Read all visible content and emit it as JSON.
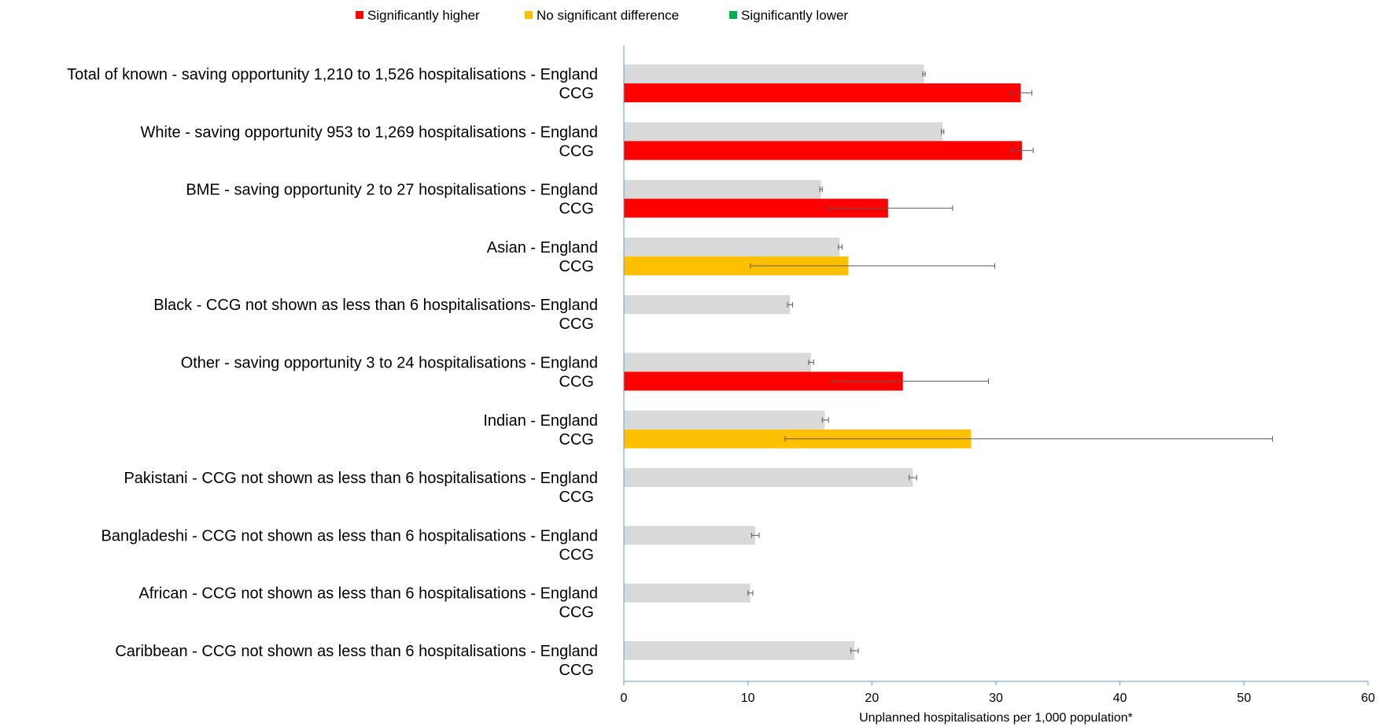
{
  "legend": [
    {
      "label": "Significantly higher",
      "color": "#ff0000"
    },
    {
      "label": "No significant difference",
      "color": "#ffc000"
    },
    {
      "label": "Significantly lower",
      "color": "#00b050"
    }
  ],
  "colors": {
    "england_bar": "#d9d9d9",
    "axis": "#5b9bd5",
    "error_bar": "#595959"
  },
  "chart_data": {
    "type": "bar",
    "orientation": "horizontal",
    "xlabel": "Unplanned hospitalisations per 1,000 population*",
    "xlim": [
      0,
      60
    ],
    "xticks": [
      0,
      10,
      20,
      30,
      40,
      50,
      60
    ],
    "grid": false,
    "legend_position": "top",
    "categories": [
      {
        "label": "Total of known - saving opportunity 1,210 to 1,526 hospitalisations - England",
        "sublabel": "CCG",
        "england": {
          "value": 24.2,
          "ci": [
            24.1,
            24.3
          ]
        },
        "ccg": {
          "value": 32.0,
          "ci": [
            31.2,
            32.9
          ],
          "significance": "Significantly higher"
        }
      },
      {
        "label": "White - saving opportunity 953 to 1,269 hospitalisations - England",
        "sublabel": "CCG",
        "england": {
          "value": 25.7,
          "ci": [
            25.6,
            25.8
          ]
        },
        "ccg": {
          "value": 32.1,
          "ci": [
            31.2,
            33.0
          ],
          "significance": "Significantly higher"
        }
      },
      {
        "label": "BME - saving opportunity 2 to 27 hospitalisations - England",
        "sublabel": "CCG",
        "england": {
          "value": 15.9,
          "ci": [
            15.8,
            16.0
          ]
        },
        "ccg": {
          "value": 21.3,
          "ci": [
            16.6,
            26.5
          ],
          "significance": "Significantly higher"
        }
      },
      {
        "label": "Asian - England",
        "sublabel": "CCG",
        "england": {
          "value": 17.4,
          "ci": [
            17.3,
            17.6
          ]
        },
        "ccg": {
          "value": 18.1,
          "ci": [
            10.2,
            29.9
          ],
          "significance": "No significant difference"
        }
      },
      {
        "label": "Black - CCG not shown as less than 6 hospitalisations- England",
        "sublabel": "CCG",
        "england": {
          "value": 13.4,
          "ci": [
            13.2,
            13.6
          ]
        },
        "ccg": null
      },
      {
        "label": "Other - saving opportunity 3 to 24 hospitalisations - England",
        "sublabel": "CCG",
        "england": {
          "value": 15.1,
          "ci": [
            14.9,
            15.3
          ]
        },
        "ccg": {
          "value": 22.5,
          "ci": [
            16.8,
            29.4
          ],
          "significance": "Significantly higher"
        }
      },
      {
        "label": "Indian - England",
        "sublabel": "CCG",
        "england": {
          "value": 16.2,
          "ci": [
            16.0,
            16.5
          ]
        },
        "ccg": {
          "value": 28.0,
          "ci": [
            13.0,
            52.3
          ],
          "significance": "No significant difference"
        }
      },
      {
        "label": "Pakistani - CCG not shown as less than 6 hospitalisations - England",
        "sublabel": "CCG",
        "england": {
          "value": 23.3,
          "ci": [
            23.0,
            23.6
          ]
        },
        "ccg": null
      },
      {
        "label": "Bangladeshi - CCG not shown as less than 6 hospitalisations - England",
        "sublabel": "CCG",
        "england": {
          "value": 10.6,
          "ci": [
            10.3,
            10.9
          ]
        },
        "ccg": null
      },
      {
        "label": "African - CCG not shown as less than 6 hospitalisations - England",
        "sublabel": "CCG",
        "england": {
          "value": 10.2,
          "ci": [
            10.0,
            10.4
          ]
        },
        "ccg": null
      },
      {
        "label": "Caribbean - CCG not shown as less than 6 hospitalisations - England",
        "sublabel": "CCG",
        "england": {
          "value": 18.6,
          "ci": [
            18.3,
            18.9
          ]
        },
        "ccg": null
      }
    ]
  }
}
